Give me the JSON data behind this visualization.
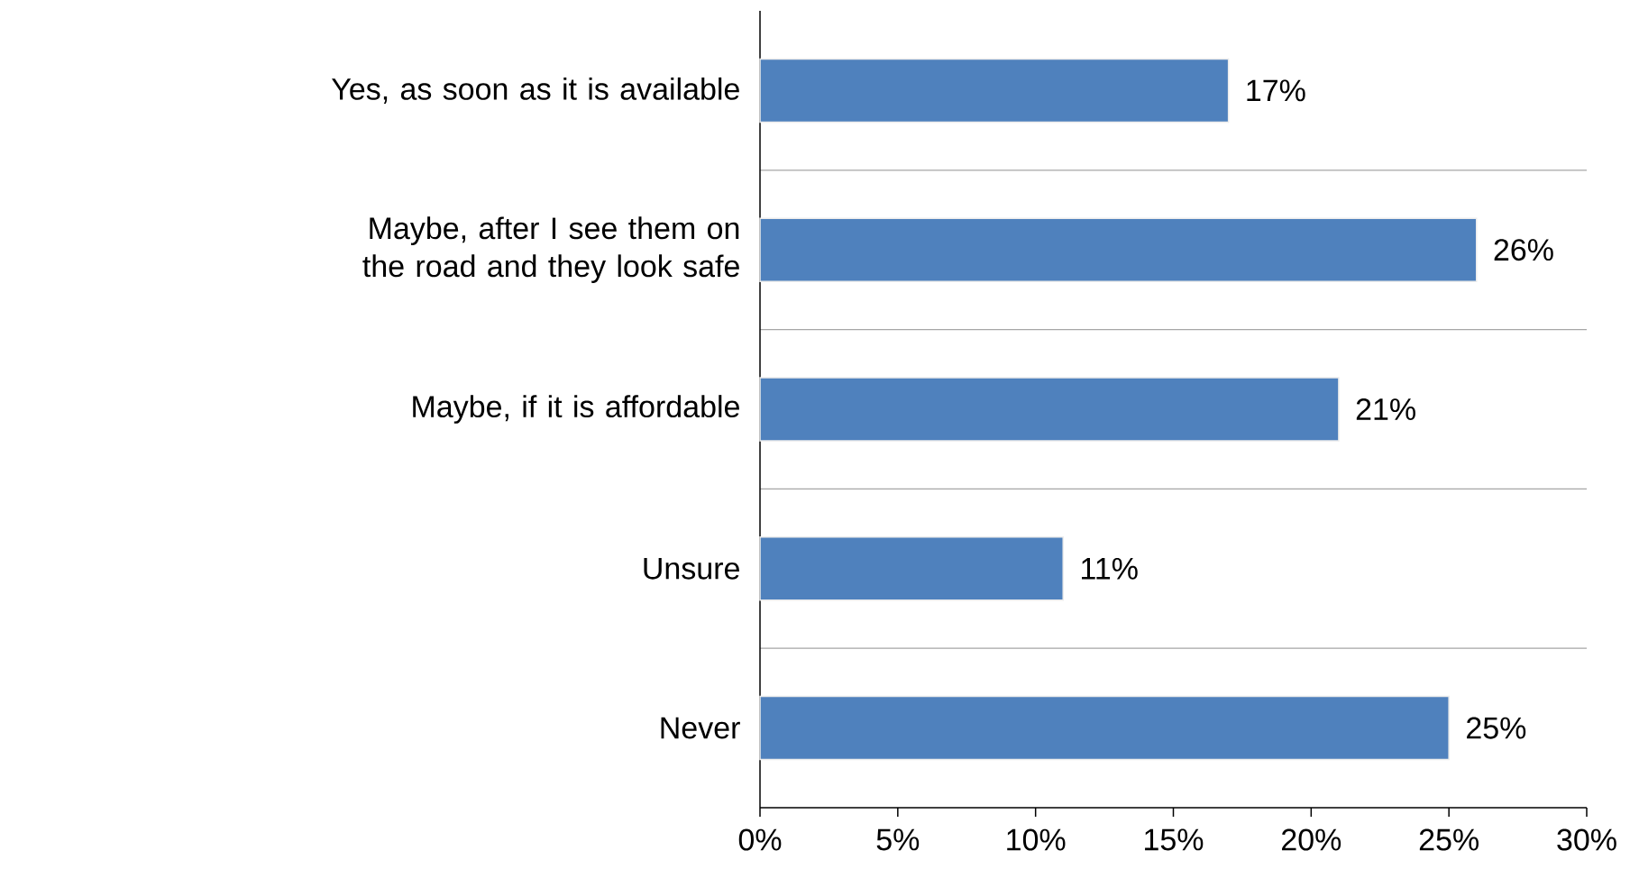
{
  "chart_data": {
    "type": "bar",
    "orientation": "horizontal",
    "categories": [
      "Yes, as soon as it is available",
      "Maybe, after I see them on the road and they look safe",
      "Maybe, if it is affordable",
      "Unsure",
      "Never"
    ],
    "values": [
      17,
      26,
      21,
      11,
      25
    ],
    "value_labels": [
      "17%",
      "26%",
      "21%",
      "11%",
      "25%"
    ],
    "color": "#4f81bd",
    "xlim": [
      0,
      30
    ],
    "xticks": [
      {
        "value": 0,
        "label": "0%"
      },
      {
        "value": 5,
        "label": "5%"
      },
      {
        "value": 10,
        "label": "10%"
      },
      {
        "value": 15,
        "label": "15%"
      },
      {
        "value": 20,
        "label": "20%"
      },
      {
        "value": 25,
        "label": "25%"
      },
      {
        "value": 30,
        "label": "30%"
      }
    ],
    "grid": "y"
  }
}
